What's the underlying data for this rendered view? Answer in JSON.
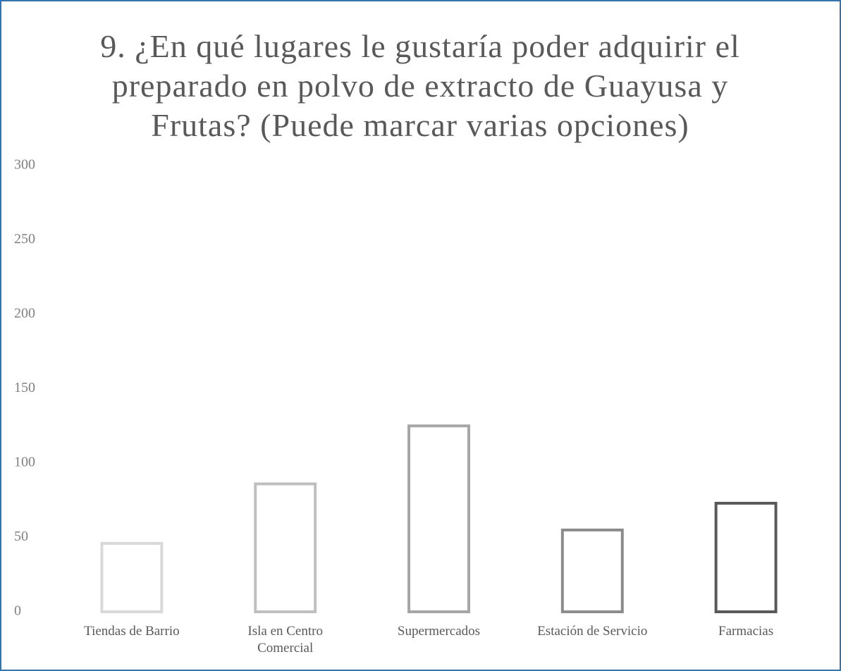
{
  "chart_data": {
    "type": "bar",
    "title": "9. ¿En qué lugares le gustaría poder adquirir el preparado en polvo de extracto de Guayusa y Frutas? (Puede marcar varias opciones)",
    "categories": [
      "Tiendas de Barrio",
      "Isla en Centro Comercial",
      "Supermercados",
      "Estación de Servicio",
      "Farmacias"
    ],
    "values": [
      46,
      86,
      125,
      55,
      73
    ],
    "colors": [
      "#d9d9d9",
      "#bfbfbf",
      "#a6a6a6",
      "#8c8c8c",
      "#595959"
    ],
    "ylim": [
      0,
      300
    ],
    "yticks": [
      0,
      50,
      100,
      150,
      200,
      250,
      300
    ],
    "grid": false
  }
}
